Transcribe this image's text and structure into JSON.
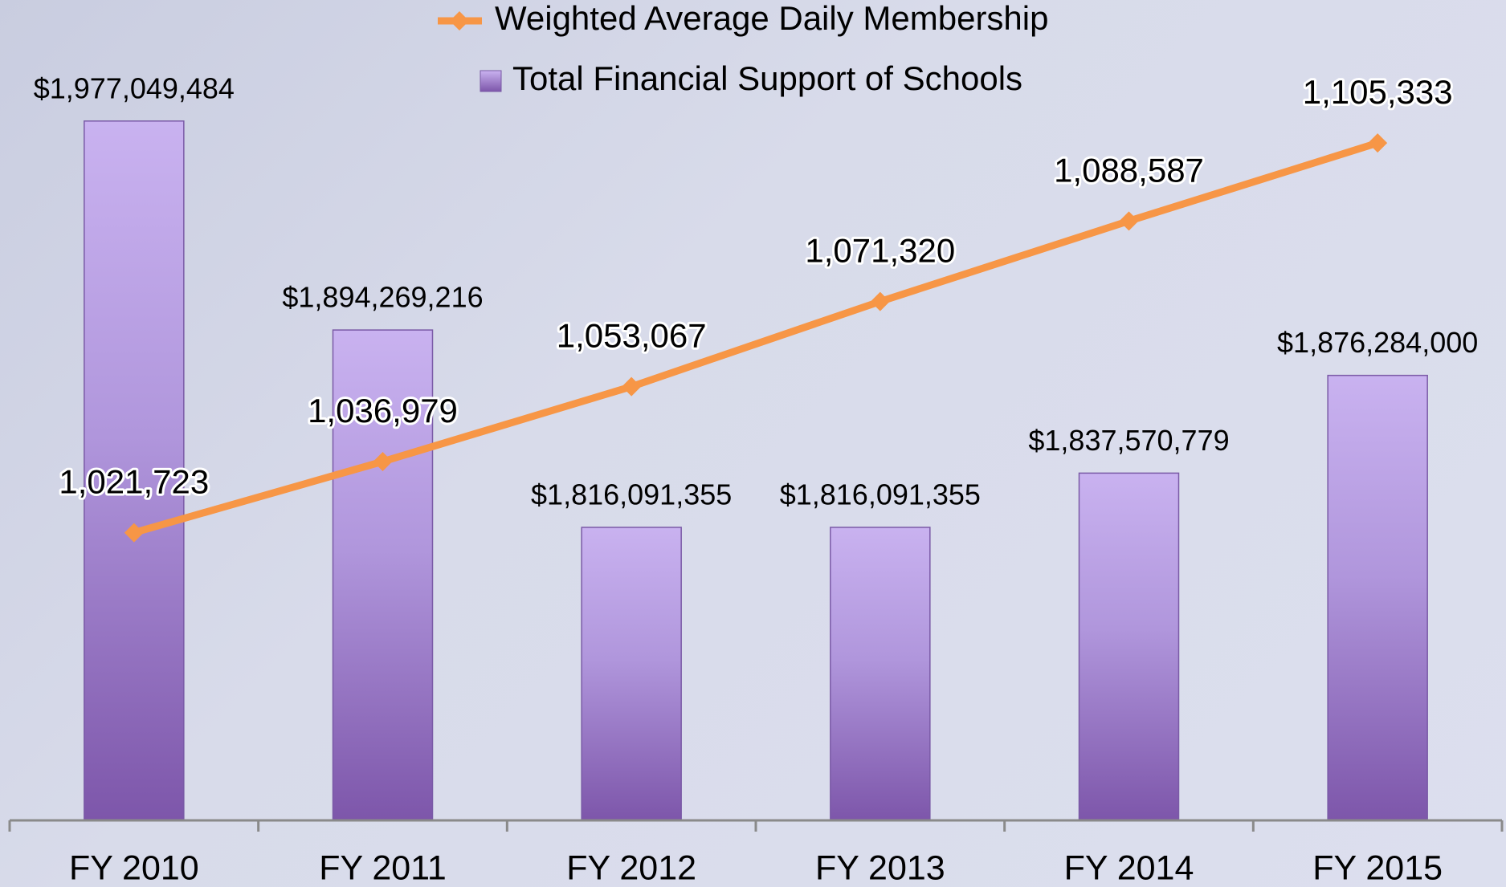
{
  "chart_data": {
    "type": "bar",
    "categories": [
      "FY 2010",
      "FY 2011",
      "FY 2012",
      "FY 2013",
      "FY 2014",
      "FY 2015"
    ],
    "series": [
      {
        "name": "Weighted Average Daily Membership",
        "type": "line",
        "axis": "y2",
        "color": "#f79646",
        "values": [
          1021723,
          1036979,
          1053067,
          1071320,
          1088587,
          1105333
        ],
        "value_labels": [
          "1,021,723",
          "1,036,979",
          "1,053,067",
          "1,071,320",
          "1,088,587",
          "1,105,333"
        ]
      },
      {
        "name": "Total Financial Support of Schools",
        "type": "bar",
        "color": "#9a76c8",
        "values": [
          1977049484,
          1894269216,
          1816091355,
          1816091355,
          1837570779,
          1876284000
        ],
        "value_labels": [
          "$1,977,049,484",
          "$1,894,269,216",
          "$1,816,091,355",
          "$1,816,091,355",
          "$1,837,570,779",
          "$1,876,284,000"
        ]
      }
    ],
    "ylim": [
      1700000000,
      2025000000
    ],
    "y2lim": [
      960000,
      1136000
    ],
    "grid": false
  }
}
